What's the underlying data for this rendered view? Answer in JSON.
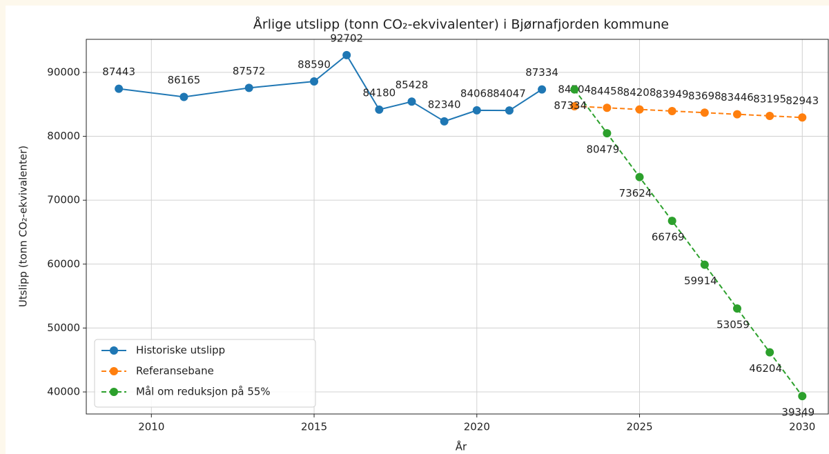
{
  "chart_data": {
    "type": "line",
    "title": "Årlige utslipp (tonn CO₂-ekvivalenter) i Bjørnafjorden kommune",
    "x_label": "År",
    "y_label": "Utslipp (tonn CO₂-ekvivalenter)",
    "series": [
      {
        "name": "Historiske utslipp",
        "color": "#1f77b4",
        "dashed": false,
        "label_side": "above",
        "x": [
          2009,
          2011,
          2013,
          2015,
          2016,
          2017,
          2018,
          2019,
          2020,
          2021,
          2022
        ],
        "values": [
          87443,
          86165,
          87572,
          88590,
          92702,
          84180,
          85428,
          82340,
          84068,
          84047,
          87334
        ]
      },
      {
        "name": "Referansebane",
        "color": "#ff7f0e",
        "dashed": true,
        "label_side": "above",
        "x": [
          2023,
          2024,
          2025,
          2026,
          2027,
          2028,
          2029,
          2030
        ],
        "values": [
          84704,
          84458,
          84208,
          83949,
          83698,
          83446,
          83195,
          82943
        ]
      },
      {
        "name": "Mål om reduksjon på 55%",
        "color": "#2ca02c",
        "dashed": true,
        "label_side": "below",
        "x": [
          2023,
          2024,
          2025,
          2026,
          2027,
          2028,
          2029,
          2030
        ],
        "values": [
          87334,
          80479,
          73624,
          66769,
          59914,
          53059,
          46204,
          39349
        ]
      }
    ],
    "xlim": [
      2008,
      2030.8
    ],
    "ylim": [
      36550,
      95175
    ],
    "xticks": [
      2010,
      2015,
      2020,
      2025,
      2030
    ],
    "yticks": [
      40000,
      50000,
      60000,
      70000,
      80000,
      90000
    ],
    "grid": true,
    "legend": "lower left"
  }
}
